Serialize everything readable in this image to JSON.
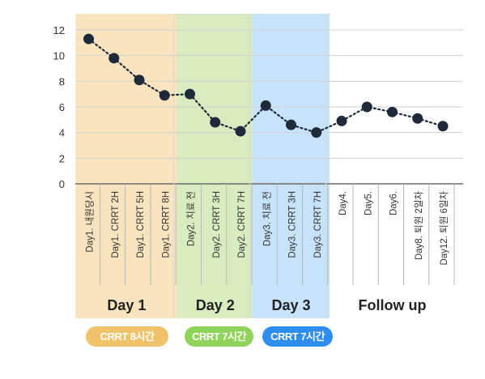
{
  "chart_data": {
    "type": "line",
    "categories": [
      "Day1. 내원당시",
      "Day1. CRRT 2H",
      "Day1. CRRT 5H",
      "Day1. CRRT 8H",
      "Day2. 치료 전",
      "Day2. CRRT 3H",
      "Day2. CRRT 7H",
      "Day3. 치료 전",
      "Day3. CRRT 3H",
      "Day3. CRRT 7H",
      "Day4.",
      "Day5.",
      "Day6.",
      "Day8. 퇴원 2일차",
      "Day12. 퇴원 6일차"
    ],
    "values": [
      11.3,
      9.8,
      8.1,
      6.9,
      7.0,
      4.8,
      4.1,
      6.1,
      4.6,
      4.0,
      4.9,
      6.0,
      5.6,
      5.1,
      4.5
    ],
    "ylim": [
      0,
      12
    ],
    "yticks": [
      "0",
      "2",
      "4",
      "6",
      "8",
      "10",
      "12"
    ],
    "grid": true,
    "line_style": "dotted",
    "colors": {
      "line": "#1e2a3a",
      "marker": "#1e2a3a",
      "grid": "#d0d0d0",
      "group_divider": "#d8d8d8"
    },
    "groups": [
      {
        "label": "Day 1",
        "start": 0,
        "end": 3,
        "band_color": "#f9e4bf",
        "badge": "CRRT 8시간",
        "badge_color": "#f0c26a"
      },
      {
        "label": "Day 2",
        "start": 4,
        "end": 6,
        "band_color": "#d8ecc0",
        "badge": "CRRT 7시간",
        "badge_color": "#8fd35a"
      },
      {
        "label": "Day 3",
        "start": 7,
        "end": 9,
        "band_color": "#c6e3fb",
        "badge": "CRRT 7시간",
        "badge_color": "#2d8ef0"
      },
      {
        "label": "Follow up",
        "start": 10,
        "end": 14,
        "band_color": null,
        "badge": null,
        "badge_color": null
      }
    ]
  }
}
